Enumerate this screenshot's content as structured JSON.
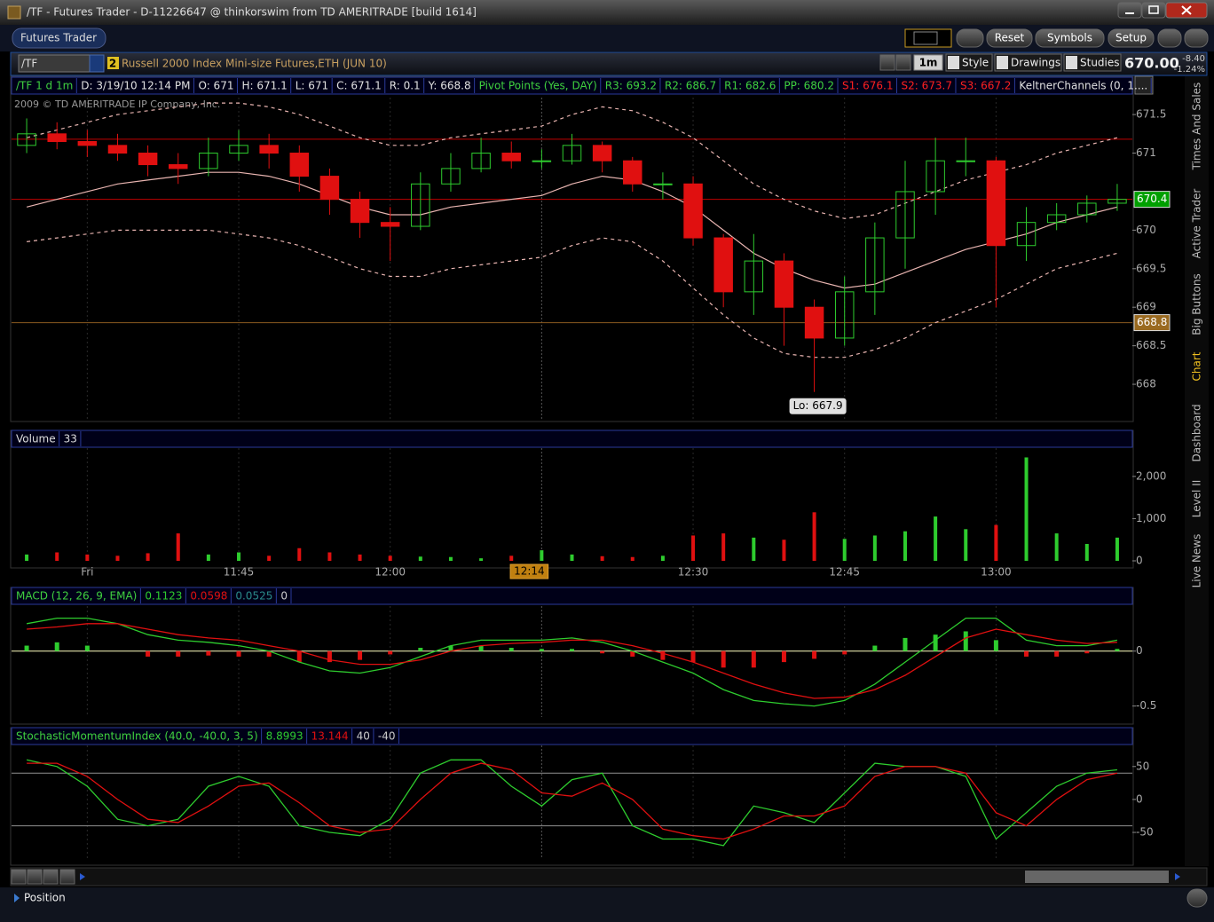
{
  "window": {
    "title": "/TF - Futures Trader - D-11226647 @ thinkorswim from TD AMERITRADE [build 1614]",
    "tab": "Futures Trader",
    "buttons": [
      "Reset",
      "Symbols",
      "Setup"
    ]
  },
  "symbol_bar": {
    "symbol": "/TF",
    "badge": "2",
    "description": "Russell 2000 Index Mini-size Futures,ETH (JUN 10)",
    "aggregation": "1m",
    "tools": [
      "Style",
      "Drawings",
      "Studies"
    ],
    "last": "670.00",
    "change": "-8.40",
    "change_pct": "-1.24%"
  },
  "side_tabs": [
    "Times And Sales",
    "Active Trader",
    "Big Buttons",
    "Chart",
    "Dashboard",
    "Level II",
    "Live News"
  ],
  "bottom": {
    "position": "Position"
  },
  "chart_data": [
    {
      "type": "candlestick",
      "info": [
        {
          "text": "/TF 1 d 1m",
          "color": "#3fd13f"
        },
        {
          "text": "D: 3/19/10 12:14 PM",
          "color": "#e0e0e0"
        },
        {
          "text": "O: 671",
          "color": "#e0e0e0"
        },
        {
          "text": "H: 671.1",
          "color": "#e0e0e0"
        },
        {
          "text": "L: 671",
          "color": "#e0e0e0"
        },
        {
          "text": "C: 671.1",
          "color": "#e0e0e0"
        },
        {
          "text": "R: 0.1",
          "color": "#e0e0e0"
        },
        {
          "text": "Y: 668.8",
          "color": "#e0e0e0"
        },
        {
          "text": "Pivot Points (Yes, DAY)",
          "color": "#3fd13f"
        },
        {
          "text": "R3: 693.2",
          "color": "#3fd13f"
        },
        {
          "text": "R2: 686.7",
          "color": "#3fd13f"
        },
        {
          "text": "R1: 682.6",
          "color": "#3fd13f"
        },
        {
          "text": "PP: 680.2",
          "color": "#3fd13f"
        },
        {
          "text": "S1: 676.1",
          "color": "#ff2020"
        },
        {
          "text": "S2: 673.7",
          "color": "#ff2020"
        },
        {
          "text": "S3: 667.2",
          "color": "#ff2020"
        },
        {
          "text": "KeltnerChannels (0, 1....",
          "color": "#e0e0e0"
        }
      ],
      "copyright": "2009 © TD AMERITRADE IP Company, Inc.",
      "open": [
        671.1,
        671.25,
        671.15,
        671.1,
        671.0,
        670.85,
        670.8,
        671.0,
        671.1,
        671.0,
        670.7,
        670.4,
        670.1,
        670.05,
        670.6,
        670.8,
        671.0,
        670.9,
        670.9,
        671.1,
        670.9,
        670.6,
        670.6,
        669.9,
        669.2,
        669.6,
        669.0,
        668.6,
        669.2,
        669.9,
        670.5,
        670.9,
        670.9,
        669.8,
        670.1,
        670.2,
        670.35
      ],
      "high": [
        671.45,
        671.4,
        671.3,
        671.25,
        671.1,
        671.0,
        671.2,
        671.3,
        671.25,
        671.1,
        670.8,
        670.5,
        670.3,
        670.75,
        671.0,
        671.2,
        671.15,
        671.05,
        671.25,
        671.15,
        670.95,
        670.75,
        670.7,
        669.95,
        669.95,
        669.7,
        669.1,
        669.4,
        670.1,
        670.9,
        671.2,
        671.2,
        670.95,
        670.3,
        670.35,
        670.45,
        670.6
      ],
      "low": [
        671.0,
        671.05,
        670.95,
        670.9,
        670.7,
        670.6,
        670.7,
        670.9,
        670.8,
        670.5,
        670.2,
        669.9,
        669.6,
        670.0,
        670.5,
        670.75,
        670.8,
        670.8,
        670.85,
        670.75,
        670.5,
        670.4,
        669.8,
        669.0,
        668.9,
        668.5,
        667.9,
        668.5,
        668.9,
        669.5,
        670.2,
        670.7,
        669.0,
        669.6,
        670.0,
        670.1,
        670.25
      ],
      "close": [
        671.25,
        671.15,
        671.1,
        671.0,
        670.85,
        670.8,
        671.0,
        671.1,
        671.0,
        670.7,
        670.4,
        670.1,
        670.05,
        670.6,
        670.8,
        671.0,
        670.9,
        670.9,
        671.1,
        670.9,
        670.6,
        670.6,
        669.9,
        669.2,
        669.6,
        669.0,
        668.6,
        669.2,
        669.9,
        670.5,
        670.9,
        670.9,
        669.8,
        670.1,
        670.2,
        670.35,
        670.4
      ],
      "up_color": "#2ecc2e",
      "down_color": "#e01010",
      "series": [
        {
          "color": "#e8b4b0",
          "values": [
            670.3,
            670.4,
            670.5,
            670.6,
            670.65,
            670.7,
            670.75,
            670.75,
            670.7,
            670.6,
            670.45,
            670.3,
            670.2,
            670.2,
            670.3,
            670.35,
            670.4,
            670.45,
            670.6,
            670.7,
            670.65,
            670.5,
            670.3,
            670.0,
            669.7,
            669.5,
            669.35,
            669.25,
            669.3,
            669.45,
            669.6,
            669.75,
            669.85,
            669.95,
            670.1,
            670.2,
            670.3
          ]
        },
        {
          "color": "#e8b4b0",
          "dash": true,
          "values": [
            671.2,
            671.3,
            671.4,
            671.5,
            671.55,
            671.6,
            671.65,
            671.65,
            671.6,
            671.5,
            671.35,
            671.2,
            671.1,
            671.1,
            671.2,
            671.25,
            671.3,
            671.35,
            671.5,
            671.6,
            671.55,
            671.4,
            671.2,
            670.9,
            670.6,
            670.4,
            670.25,
            670.15,
            670.2,
            670.35,
            670.5,
            670.65,
            670.75,
            670.85,
            671.0,
            671.1,
            671.2
          ]
        },
        {
          "color": "#e8b4b0",
          "dash": true,
          "values": [
            669.85,
            669.9,
            669.95,
            670.0,
            670.0,
            670.0,
            670.0,
            669.95,
            669.9,
            669.8,
            669.65,
            669.5,
            669.4,
            669.4,
            669.5,
            669.55,
            669.6,
            669.65,
            669.8,
            669.9,
            669.85,
            669.6,
            669.25,
            668.9,
            668.6,
            668.4,
            668.35,
            668.35,
            668.45,
            668.6,
            668.8,
            668.95,
            669.1,
            669.3,
            669.5,
            669.6,
            669.7
          ]
        }
      ],
      "hlines": [
        {
          "value": 671.18,
          "color": "#c00000"
        },
        {
          "value": 670.4,
          "color": "#c00000"
        },
        {
          "value": 668.8,
          "color": "#8a5a20"
        }
      ],
      "markers": [
        {
          "value": 670.4,
          "color": "#00a000"
        },
        {
          "value": 668.8,
          "color": "#9a6a20"
        }
      ],
      "annotation": "Lo: 667.9",
      "ylim": [
        667.54,
        671.72
      ],
      "yticks": [
        668,
        668.5,
        669,
        669.5,
        670,
        671,
        671.5
      ]
    },
    {
      "type": "bar",
      "title": "Volume",
      "current": 33,
      "categories": [
        null,
        null,
        "Fri",
        null,
        null,
        null,
        null,
        "11:45",
        null,
        null,
        null,
        null,
        "12:00",
        null,
        null,
        null,
        null,
        null,
        null,
        null,
        null,
        null,
        "12:30",
        null,
        null,
        null,
        null,
        "12:45",
        null,
        null,
        null,
        null,
        "13:00",
        null,
        null,
        null,
        null
      ],
      "cursor_label": "12:14",
      "values": [
        150,
        200,
        150,
        120,
        180,
        650,
        150,
        200,
        120,
        300,
        200,
        150,
        120,
        100,
        90,
        60,
        120,
        250,
        150,
        110,
        90,
        120,
        600,
        650,
        550,
        500,
        1150,
        520,
        600,
        700,
        1050,
        750,
        850,
        2450,
        650,
        400,
        550
      ],
      "ylim": [
        0,
        2670
      ],
      "yticks": [
        0,
        {
          "value": 1000,
          "label": "1,000"
        },
        {
          "value": 2000,
          "label": "2,000"
        }
      ]
    },
    {
      "type": "line",
      "title": "MACD (12, 26, 9, EMA)",
      "title_color": "#3fd13f",
      "series": [
        {
          "color": "#2ecc2e",
          "legend": 0.1123,
          "values": [
            0.25,
            0.3,
            0.3,
            0.25,
            0.15,
            0.1,
            0.08,
            0.05,
            0.0,
            -0.1,
            -0.18,
            -0.2,
            -0.15,
            -0.05,
            0.05,
            0.1,
            0.1,
            0.1,
            0.12,
            0.08,
            0.0,
            -0.1,
            -0.2,
            -0.35,
            -0.45,
            -0.48,
            -0.5,
            -0.45,
            -0.3,
            -0.1,
            0.1,
            0.3,
            0.3,
            0.1,
            0.05,
            0.05,
            0.1
          ]
        },
        {
          "color": "#e01010",
          "legend": 0.0598,
          "values": [
            0.2,
            0.22,
            0.25,
            0.25,
            0.2,
            0.15,
            0.12,
            0.1,
            0.05,
            0.0,
            -0.08,
            -0.12,
            -0.12,
            -0.08,
            0.0,
            0.05,
            0.07,
            0.08,
            0.1,
            0.1,
            0.05,
            -0.02,
            -0.1,
            -0.2,
            -0.3,
            -0.38,
            -0.43,
            -0.42,
            -0.35,
            -0.22,
            -0.05,
            0.12,
            0.2,
            0.15,
            0.1,
            0.07,
            0.08
          ]
        },
        {
          "style": "histogram",
          "color": "#2ecc2e",
          "negative_color": "#e01010",
          "legend_color": "#2a8a8a",
          "legend": 0.0525,
          "values": [
            0.05,
            0.08,
            0.05,
            0.0,
            -0.05,
            -0.05,
            -0.04,
            -0.05,
            -0.05,
            -0.1,
            -0.1,
            -0.08,
            -0.03,
            0.03,
            0.05,
            0.05,
            0.03,
            0.02,
            0.02,
            -0.02,
            -0.05,
            -0.08,
            -0.1,
            -0.15,
            -0.15,
            -0.1,
            -0.07,
            -0.03,
            0.05,
            0.12,
            0.15,
            0.18,
            0.1,
            -0.05,
            -0.05,
            -0.02,
            0.02
          ]
        }
      ],
      "reference_lines": [
        0
      ],
      "reference_color": "#ffffc0",
      "ylim": [
        -0.6,
        0.41
      ],
      "yticks": [
        0,
        -0.5
      ]
    },
    {
      "type": "line",
      "title": "StochasticMomentumIndex (40.0, -40.0, 3, 5)",
      "title_color": "#3fd13f",
      "series": [
        {
          "color": "#2ecc2e",
          "legend": 8.8993,
          "values": [
            60,
            50,
            20,
            -30,
            -40,
            -30,
            20,
            35,
            20,
            -40,
            -50,
            -55,
            -30,
            40,
            60,
            60,
            20,
            -10,
            30,
            40,
            -40,
            -60,
            -60,
            -70,
            -10,
            -20,
            -35,
            10,
            55,
            50,
            50,
            35,
            -60,
            -20,
            20,
            40,
            45
          ]
        },
        {
          "color": "#e01010",
          "legend": 13.144,
          "values": [
            55,
            55,
            35,
            0,
            -30,
            -35,
            -10,
            20,
            25,
            -5,
            -40,
            -50,
            -45,
            0,
            40,
            55,
            45,
            10,
            5,
            25,
            0,
            -45,
            -55,
            -60,
            -45,
            -25,
            -25,
            -10,
            35,
            50,
            50,
            40,
            -20,
            -40,
            0,
            30,
            40
          ]
        }
      ],
      "reference_lines": [
        40,
        -40
      ],
      "reference_color": "#909090",
      "ylim": [
        -89,
        82
      ],
      "yticks": [
        50,
        0,
        -50
      ]
    }
  ]
}
